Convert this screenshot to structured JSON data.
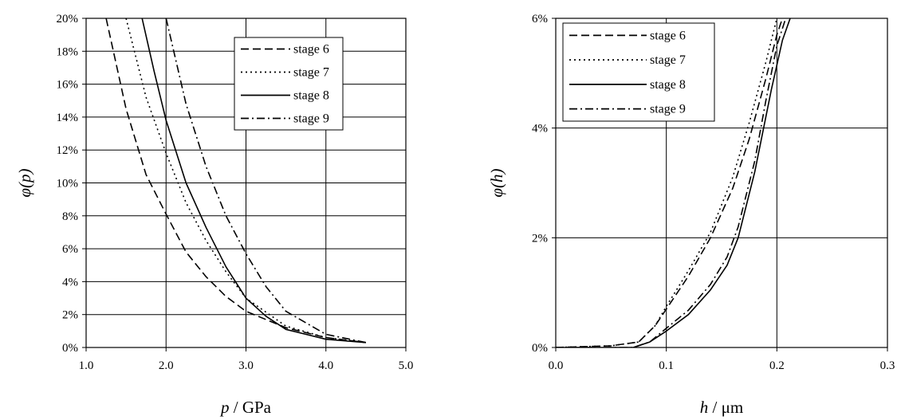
{
  "chart_data": [
    {
      "type": "line",
      "title": "",
      "xlabel_var": "p",
      "xlabel_unit": " / GPa",
      "ylabel_var": "φ(p)",
      "xlim": [
        1.0,
        5.0
      ],
      "ylim": [
        0,
        0.2
      ],
      "x_ticks": [
        1.0,
        2.0,
        3.0,
        4.0,
        5.0
      ],
      "x_tick_labels": [
        "1.0",
        "2.0",
        "3.0",
        "4.0",
        "5.0"
      ],
      "y_ticks": [
        0,
        0.02,
        0.04,
        0.06,
        0.08,
        0.1,
        0.12,
        0.14,
        0.16,
        0.18,
        0.2
      ],
      "y_tick_labels": [
        "0%",
        "2%",
        "4%",
        "6%",
        "8%",
        "10%",
        "12%",
        "14%",
        "16%",
        "18%",
        "20%"
      ],
      "grid": true,
      "legend_position": "top-right",
      "series": [
        {
          "name": "stage 6",
          "dash": "dashed",
          "x": [
            1.25,
            1.5,
            1.75,
            2.0,
            2.25,
            2.5,
            2.75,
            3.0,
            3.5,
            4.0,
            4.5
          ],
          "y": [
            0.2,
            0.145,
            0.105,
            0.081,
            0.058,
            0.043,
            0.031,
            0.022,
            0.012,
            0.006,
            0.003
          ]
        },
        {
          "name": "stage 7",
          "dash": "dotted",
          "x": [
            1.5,
            1.75,
            2.0,
            2.25,
            2.5,
            2.75,
            3.0,
            3.5,
            4.0,
            4.5
          ],
          "y": [
            0.2,
            0.152,
            0.118,
            0.088,
            0.065,
            0.046,
            0.03,
            0.013,
            0.006,
            0.003
          ]
        },
        {
          "name": "stage 8",
          "dash": "solid",
          "x": [
            1.7,
            1.85,
            2.0,
            2.25,
            2.5,
            2.75,
            3.0,
            3.25,
            3.5,
            4.0,
            4.5
          ],
          "y": [
            0.2,
            0.168,
            0.138,
            0.1,
            0.073,
            0.049,
            0.03,
            0.019,
            0.011,
            0.005,
            0.003
          ]
        },
        {
          "name": "stage 9",
          "dash": "dashdot",
          "x": [
            2.0,
            2.25,
            2.5,
            2.75,
            3.0,
            3.25,
            3.5,
            4.0,
            4.5
          ],
          "y": [
            0.2,
            0.148,
            0.11,
            0.08,
            0.057,
            0.037,
            0.022,
            0.008,
            0.003
          ]
        }
      ]
    },
    {
      "type": "line",
      "title": "",
      "xlabel_var": "h",
      "xlabel_unit": " / μm",
      "ylabel_var": "φ(h)",
      "xlim": [
        0.0,
        0.3
      ],
      "ylim": [
        0,
        0.06
      ],
      "x_ticks": [
        0.0,
        0.1,
        0.2,
        0.3
      ],
      "x_tick_labels": [
        "0.0",
        "0.1",
        "0.2",
        "0.3"
      ],
      "y_ticks": [
        0,
        0.02,
        0.04,
        0.06
      ],
      "y_tick_labels": [
        "0%",
        "2%",
        "4%",
        "6%"
      ],
      "grid": true,
      "legend_position": "top-left",
      "series": [
        {
          "name": "stage 6",
          "dash": "dashed",
          "x": [
            0.0,
            0.05,
            0.075,
            0.09,
            0.1,
            0.12,
            0.14,
            0.16,
            0.175,
            0.19,
            0.2,
            0.205
          ],
          "y": [
            0.0,
            0.0003,
            0.001,
            0.004,
            0.007,
            0.013,
            0.02,
            0.029,
            0.038,
            0.049,
            0.057,
            0.06
          ]
        },
        {
          "name": "stage 7",
          "dash": "dotted",
          "x": [
            0.0,
            0.05,
            0.075,
            0.09,
            0.1,
            0.12,
            0.14,
            0.16,
            0.175,
            0.19,
            0.2
          ],
          "y": [
            0.0,
            0.0003,
            0.001,
            0.004,
            0.0075,
            0.014,
            0.021,
            0.031,
            0.041,
            0.052,
            0.06
          ]
        },
        {
          "name": "stage 8",
          "dash": "solid",
          "x": [
            0.0,
            0.07,
            0.085,
            0.1,
            0.12,
            0.14,
            0.155,
            0.165,
            0.18,
            0.195,
            0.205,
            0.212
          ],
          "y": [
            0.0,
            0.0,
            0.001,
            0.003,
            0.006,
            0.0105,
            0.015,
            0.02,
            0.032,
            0.047,
            0.056,
            0.06
          ]
        },
        {
          "name": "stage 9",
          "dash": "dashdot",
          "x": [
            0.0,
            0.07,
            0.085,
            0.1,
            0.12,
            0.14,
            0.155,
            0.165,
            0.18,
            0.19,
            0.2,
            0.208
          ],
          "y": [
            0.0,
            0.0,
            0.001,
            0.0035,
            0.0068,
            0.0115,
            0.0165,
            0.022,
            0.034,
            0.045,
            0.055,
            0.06
          ]
        }
      ]
    }
  ]
}
